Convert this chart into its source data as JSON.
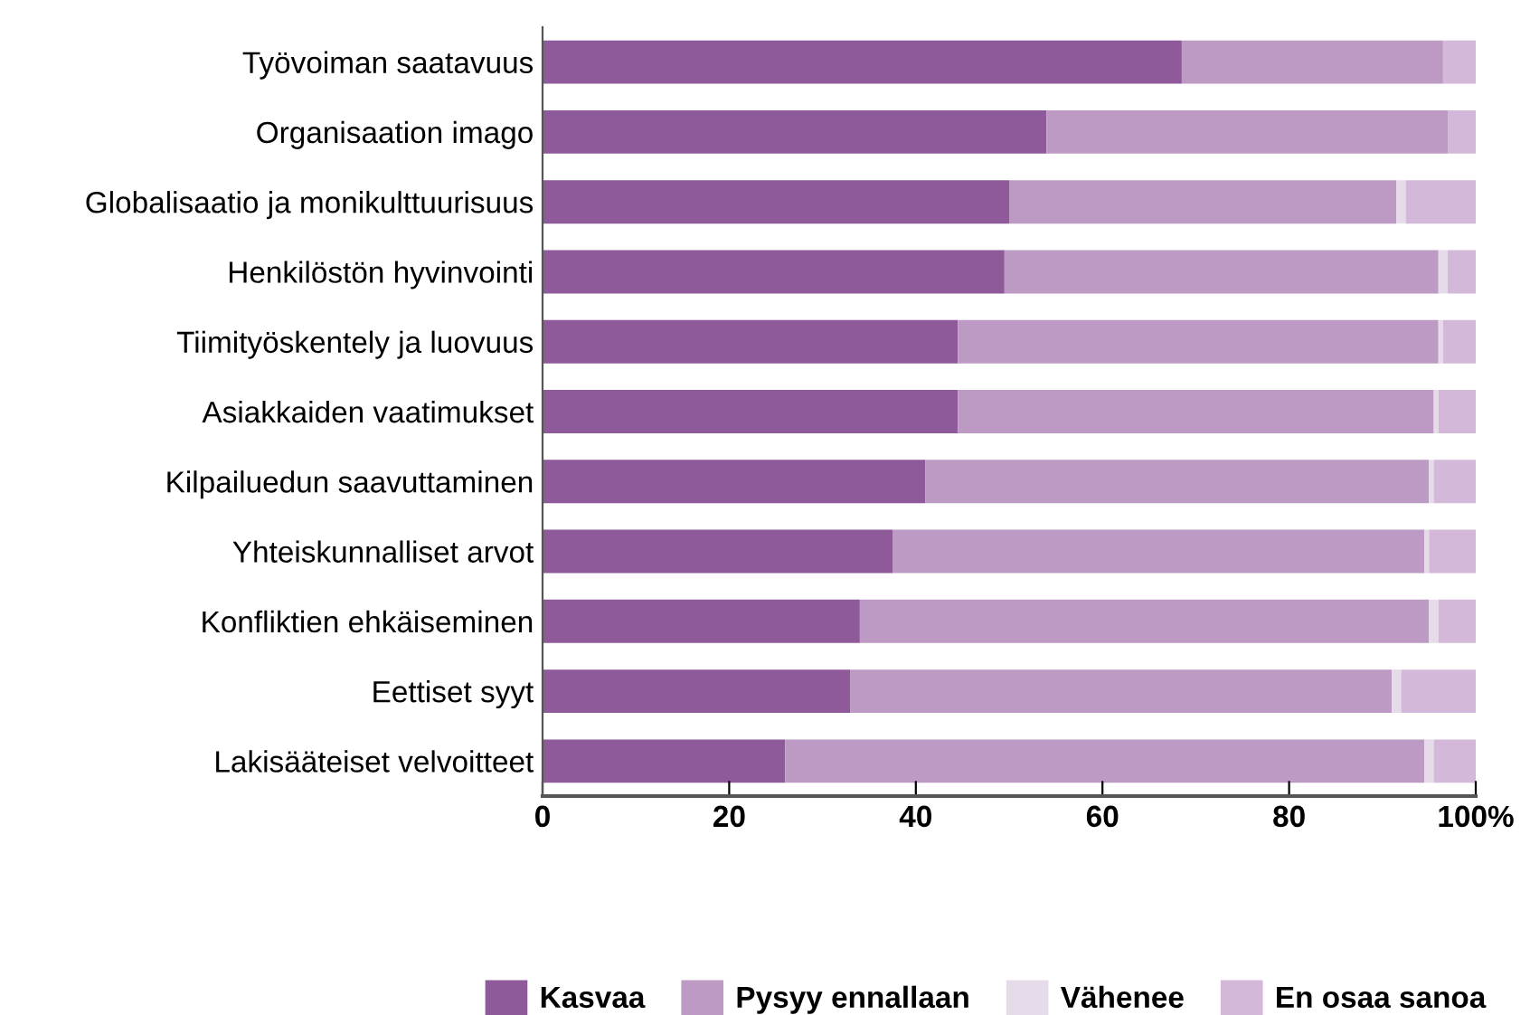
{
  "chart_data": {
    "type": "bar",
    "orientation": "horizontal",
    "stacked": true,
    "categories": [
      "Työvoiman saatavuus",
      "Organisaation imago",
      "Globalisaatio ja monikulttuurisuus",
      "Henkilöstön hyvinvointi",
      "Tiimityöskentely ja luovuus",
      "Asiakkaiden vaatimukset",
      "Kilpailuedun saavuttaminen",
      "Yhteiskunnalliset arvot",
      "Konfliktien ehkäiseminen",
      "Eettiset syyt",
      "Lakisääteiset velvoitteet"
    ],
    "series": [
      {
        "name": "Kasvaa",
        "color": "#8e5a9a",
        "values": [
          68.5,
          54,
          50,
          49.5,
          44.5,
          44.5,
          41,
          37.5,
          34,
          33,
          26
        ]
      },
      {
        "name": "Pysyy ennallaan",
        "color": "#bd9ac3",
        "values": [
          28,
          43,
          41.5,
          46.5,
          51.5,
          51,
          54,
          57,
          61,
          58,
          68.5
        ]
      },
      {
        "name": "Vähenee",
        "color": "#e6dbe9",
        "values": [
          0,
          0,
          1,
          1,
          0.5,
          0.5,
          0.5,
          0.5,
          1,
          1,
          1
        ]
      },
      {
        "name": "En osaa sanoa",
        "color": "#d4b8da",
        "values": [
          3.5,
          3,
          7.5,
          3,
          3.5,
          4,
          4.5,
          5,
          4,
          8,
          4.5
        ]
      }
    ],
    "xlim": [
      0,
      100
    ],
    "xticks": [
      0,
      20,
      40,
      60,
      80,
      {
        "value": 100,
        "label": "100%"
      }
    ],
    "grid": false,
    "legend": "bottom"
  }
}
